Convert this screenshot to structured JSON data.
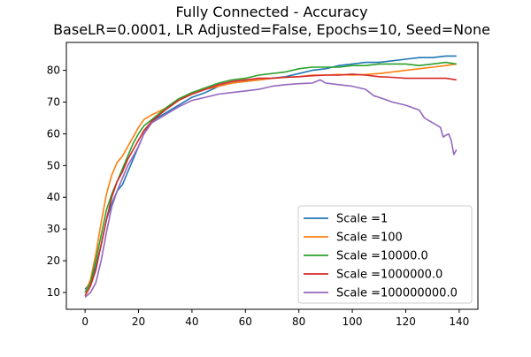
{
  "chart_data": {
    "type": "line",
    "title": "Fully Connected - Accuracy",
    "subtitle": "BaseLR=0.0001, LR Adjusted=False, Epochs=10, Seed=None",
    "xlabel": "",
    "ylabel": "",
    "xlim": [
      -7,
      147
    ],
    "ylim": [
      4.7,
      88.8
    ],
    "xticks": [
      0,
      20,
      40,
      60,
      80,
      100,
      120,
      140
    ],
    "yticks": [
      10,
      20,
      30,
      40,
      50,
      60,
      70,
      80
    ],
    "grid": false,
    "legend_position": "lower-right",
    "series": [
      {
        "name": "Scale =1",
        "color": "#1f77b4",
        "points": [
          [
            0,
            11
          ],
          [
            2,
            13
          ],
          [
            4,
            18
          ],
          [
            6,
            25
          ],
          [
            8,
            33
          ],
          [
            10,
            38
          ],
          [
            12,
            42
          ],
          [
            14,
            44
          ],
          [
            16,
            48
          ],
          [
            18,
            52
          ],
          [
            20,
            56
          ],
          [
            22,
            60
          ],
          [
            25,
            64
          ],
          [
            30,
            66.5
          ],
          [
            35,
            69
          ],
          [
            40,
            71.5
          ],
          [
            45,
            73
          ],
          [
            50,
            75
          ],
          [
            55,
            76
          ],
          [
            60,
            76.5
          ],
          [
            65,
            77
          ],
          [
            70,
            77.5
          ],
          [
            75,
            78
          ],
          [
            80,
            79
          ],
          [
            85,
            80
          ],
          [
            90,
            80.5
          ],
          [
            95,
            81.5
          ],
          [
            100,
            82
          ],
          [
            105,
            82.5
          ],
          [
            110,
            82.5
          ],
          [
            115,
            83
          ],
          [
            120,
            83.5
          ],
          [
            125,
            84
          ],
          [
            130,
            84
          ],
          [
            135,
            84.5
          ],
          [
            139,
            84.5
          ]
        ]
      },
      {
        "name": "Scale =100",
        "color": "#ff7f0e",
        "points": [
          [
            0,
            10
          ],
          [
            2,
            14
          ],
          [
            4,
            22
          ],
          [
            6,
            32
          ],
          [
            8,
            41
          ],
          [
            10,
            47
          ],
          [
            12,
            51
          ],
          [
            14,
            53
          ],
          [
            16,
            56
          ],
          [
            18,
            59
          ],
          [
            20,
            62
          ],
          [
            22,
            64.5
          ],
          [
            25,
            66
          ],
          [
            30,
            68
          ],
          [
            35,
            71
          ],
          [
            40,
            72.5
          ],
          [
            45,
            74
          ],
          [
            50,
            75
          ],
          [
            55,
            76
          ],
          [
            60,
            76.5
          ],
          [
            65,
            77
          ],
          [
            70,
            77.5
          ],
          [
            75,
            77.8
          ],
          [
            80,
            78
          ],
          [
            85,
            78.5
          ],
          [
            90,
            78.5
          ],
          [
            95,
            78.7
          ],
          [
            100,
            78.5
          ],
          [
            105,
            78.7
          ],
          [
            110,
            79
          ],
          [
            115,
            79.5
          ],
          [
            120,
            80
          ],
          [
            125,
            80.5
          ],
          [
            130,
            81
          ],
          [
            135,
            81.5
          ],
          [
            139,
            82
          ]
        ]
      },
      {
        "name": "Scale =10000.0",
        "color": "#2ca02c",
        "points": [
          [
            0,
            10
          ],
          [
            2,
            13
          ],
          [
            4,
            20
          ],
          [
            6,
            28
          ],
          [
            8,
            36
          ],
          [
            10,
            41
          ],
          [
            12,
            45
          ],
          [
            14,
            49
          ],
          [
            16,
            53
          ],
          [
            18,
            57
          ],
          [
            20,
            60
          ],
          [
            22,
            62.5
          ],
          [
            25,
            64.5
          ],
          [
            30,
            68
          ],
          [
            35,
            71
          ],
          [
            40,
            73
          ],
          [
            45,
            74.5
          ],
          [
            50,
            76
          ],
          [
            55,
            77
          ],
          [
            60,
            77.5
          ],
          [
            65,
            78.5
          ],
          [
            70,
            79
          ],
          [
            75,
            79.5
          ],
          [
            80,
            80.5
          ],
          [
            85,
            81
          ],
          [
            90,
            81
          ],
          [
            95,
            81
          ],
          [
            100,
            81.5
          ],
          [
            105,
            81.5
          ],
          [
            110,
            82
          ],
          [
            115,
            82
          ],
          [
            120,
            82
          ],
          [
            125,
            81.5
          ],
          [
            130,
            82
          ],
          [
            135,
            82.5
          ],
          [
            139,
            82
          ]
        ]
      },
      {
        "name": "Scale =1000000.0",
        "color": "#d62728",
        "points": [
          [
            0,
            9
          ],
          [
            2,
            12
          ],
          [
            4,
            17
          ],
          [
            6,
            25
          ],
          [
            8,
            33
          ],
          [
            10,
            40
          ],
          [
            12,
            45
          ],
          [
            14,
            48
          ],
          [
            16,
            52
          ],
          [
            18,
            55
          ],
          [
            20,
            58
          ],
          [
            22,
            61
          ],
          [
            25,
            64
          ],
          [
            30,
            67.5
          ],
          [
            35,
            70.5
          ],
          [
            40,
            72.5
          ],
          [
            45,
            74
          ],
          [
            50,
            75.5
          ],
          [
            55,
            76.5
          ],
          [
            60,
            77
          ],
          [
            65,
            77.5
          ],
          [
            70,
            77.5
          ],
          [
            75,
            77.8
          ],
          [
            80,
            78
          ],
          [
            85,
            78.3
          ],
          [
            90,
            78.5
          ],
          [
            95,
            78.5
          ],
          [
            100,
            78.8
          ],
          [
            105,
            78.5
          ],
          [
            110,
            78
          ],
          [
            115,
            77.8
          ],
          [
            120,
            77.5
          ],
          [
            125,
            77.5
          ],
          [
            130,
            77.5
          ],
          [
            135,
            77.5
          ],
          [
            139,
            77
          ]
        ]
      },
      {
        "name": "Scale =100000000.0",
        "color": "#9467bd",
        "points": [
          [
            0,
            8.5
          ],
          [
            2,
            10
          ],
          [
            4,
            13
          ],
          [
            6,
            20
          ],
          [
            8,
            29
          ],
          [
            10,
            37
          ],
          [
            12,
            42
          ],
          [
            14,
            46
          ],
          [
            16,
            50
          ],
          [
            18,
            53
          ],
          [
            20,
            56
          ],
          [
            22,
            60
          ],
          [
            25,
            63.5
          ],
          [
            30,
            66
          ],
          [
            35,
            68.5
          ],
          [
            40,
            70.5
          ],
          [
            45,
            71.5
          ],
          [
            50,
            72.5
          ],
          [
            55,
            73
          ],
          [
            60,
            73.5
          ],
          [
            65,
            74
          ],
          [
            70,
            75
          ],
          [
            75,
            75.5
          ],
          [
            80,
            75.8
          ],
          [
            85,
            76
          ],
          [
            88,
            77
          ],
          [
            90,
            76
          ],
          [
            95,
            75.5
          ],
          [
            100,
            75
          ],
          [
            105,
            74
          ],
          [
            108,
            72
          ],
          [
            110,
            71.5
          ],
          [
            115,
            70
          ],
          [
            120,
            69
          ],
          [
            125,
            67.5
          ],
          [
            127,
            65
          ],
          [
            129,
            64
          ],
          [
            131,
            63
          ],
          [
            133,
            62
          ],
          [
            134,
            59
          ],
          [
            136,
            60
          ],
          [
            137,
            58
          ],
          [
            138,
            53.5
          ],
          [
            139,
            55
          ]
        ]
      }
    ]
  }
}
